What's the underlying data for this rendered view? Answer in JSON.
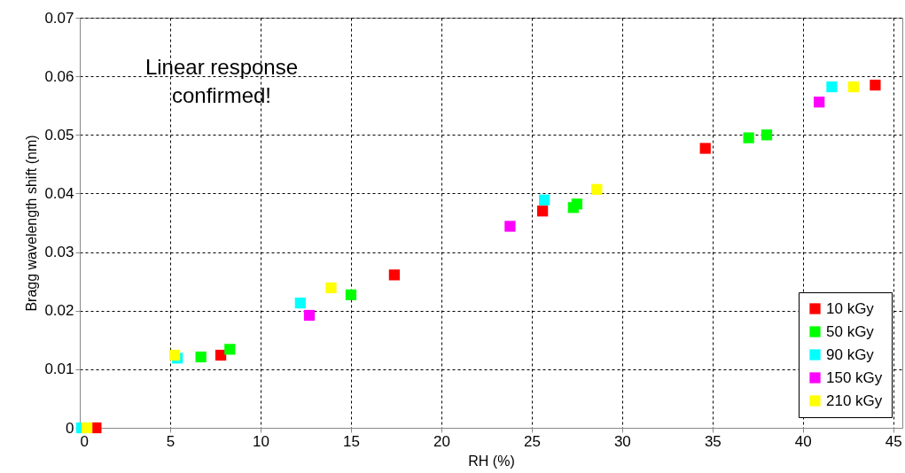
{
  "chart_data": {
    "type": "scatter",
    "xlabel": "RH (%)",
    "ylabel": "Bragg wavelength shift (nm)",
    "annotations": [
      "Linear response\nconfirmed!"
    ],
    "xlim": [
      0,
      45.5
    ],
    "xticks": [
      0,
      5,
      10,
      15,
      20,
      25,
      30,
      35,
      40,
      45
    ],
    "ylim": [
      0,
      0.07
    ],
    "yticks": [
      0,
      0.01,
      0.02,
      0.03,
      0.04,
      0.05,
      0.06,
      0.07
    ],
    "grid": true,
    "legend": "bottom right",
    "marker": "square",
    "series": [
      {
        "name": "10 kGy",
        "color": "#ff0000",
        "x": [
          0.9,
          7.8,
          17.4,
          25.6,
          34.6,
          44.0
        ],
        "values": [
          0,
          0.0124,
          0.0261,
          0.037,
          0.0477,
          0.0585
        ]
      },
      {
        "name": "50 kGy",
        "color": "#00ff00",
        "x": [
          6.7,
          8.3,
          15.0,
          27.3,
          27.5,
          37.0,
          38.0
        ],
        "values": [
          0.0121,
          0.0134,
          0.0227,
          0.0376,
          0.0382,
          0.0495,
          0.05
        ]
      },
      {
        "name": "90 kGy",
        "color": "#00ffff",
        "x": [
          0.1,
          5.4,
          12.2,
          25.7,
          41.6
        ],
        "values": [
          0,
          0.0119,
          0.0213,
          0.0389,
          0.0582
        ]
      },
      {
        "name": "150 kGy",
        "color": "#ff00ff",
        "x": [
          12.7,
          23.8,
          40.9
        ],
        "values": [
          0.0192,
          0.0344,
          0.0556
        ]
      },
      {
        "name": "210 kGy",
        "color": "#ffff00",
        "x": [
          0.4,
          5.25,
          13.9,
          28.6,
          42.8
        ],
        "values": [
          0,
          0.0124,
          0.0239,
          0.0407,
          0.0582
        ]
      }
    ]
  }
}
